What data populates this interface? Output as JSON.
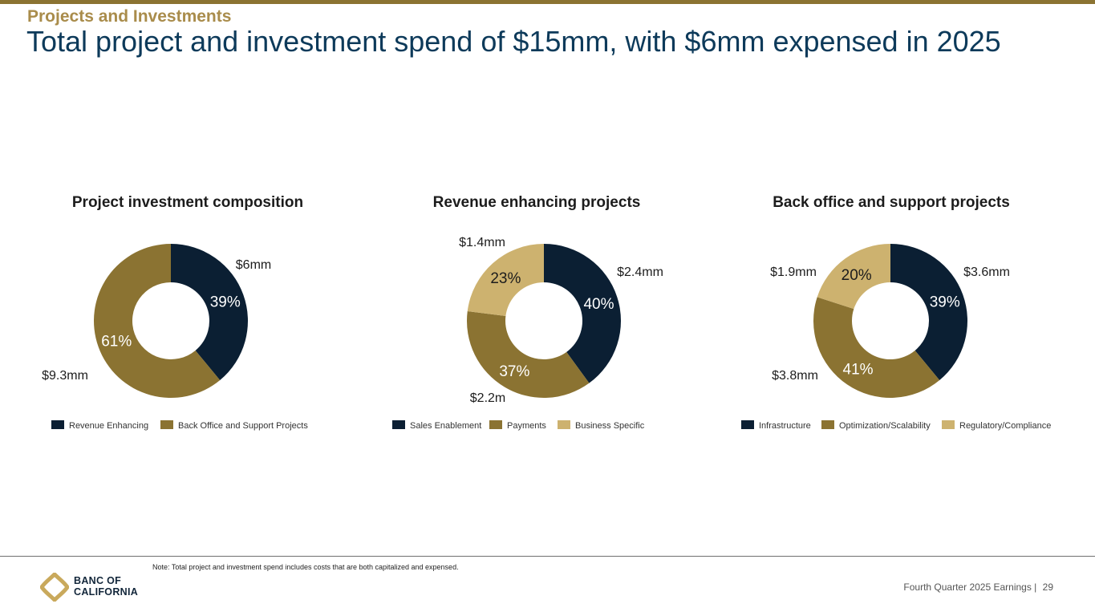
{
  "header": {
    "section": "Projects and Investments",
    "title": "Total project and investment spend of $15mm, with $6mm expensed in 2025"
  },
  "colors": {
    "navy": "#0B1F33",
    "olive": "#8B7332",
    "tan": "#CDB26F",
    "title_blue": "#0D3A5A",
    "section_gold": "#A98C4B"
  },
  "chart_data": [
    {
      "type": "pie",
      "title": "Project investment composition",
      "categories": [
        "Revenue Enhancing",
        "Back Office and Support Projects"
      ],
      "values": [
        39,
        61
      ],
      "percent_labels": [
        "39%",
        "61%"
      ],
      "amount_labels": [
        "$6mm",
        "$9.3mm"
      ],
      "colors": [
        "#0B1F33",
        "#8B7332"
      ],
      "legend": "bottom"
    },
    {
      "type": "pie",
      "title": "Revenue enhancing projects",
      "categories": [
        "Sales Enablement",
        "Payments",
        "Business Specific"
      ],
      "values": [
        40,
        37,
        23
      ],
      "percent_labels": [
        "40%",
        "37%",
        "23%"
      ],
      "amount_labels": [
        "$2.4mm",
        "$2.2m",
        "$1.4mm"
      ],
      "colors": [
        "#0B1F33",
        "#8B7332",
        "#CDB26F"
      ],
      "legend": "bottom"
    },
    {
      "type": "pie",
      "title": "Back office and support projects",
      "categories": [
        "Infrastructure",
        "Optimization/Scalability",
        "Regulatory/Compliance"
      ],
      "values": [
        39,
        41,
        20
      ],
      "percent_labels": [
        "39%",
        "41%",
        "20%"
      ],
      "amount_labels": [
        "$3.6mm",
        "$3.8mm",
        "$1.9mm"
      ],
      "colors": [
        "#0B1F33",
        "#8B7332",
        "#CDB26F"
      ],
      "legend": "bottom"
    }
  ],
  "footer": {
    "note": "Note: Total project and investment spend includes costs that are both capitalized and expensed.",
    "logo_line1": "BANC OF",
    "logo_line2": "CALIFORNIA",
    "report": "Fourth Quarter 2025 Earnings",
    "separator": "|",
    "page_number": "29"
  }
}
